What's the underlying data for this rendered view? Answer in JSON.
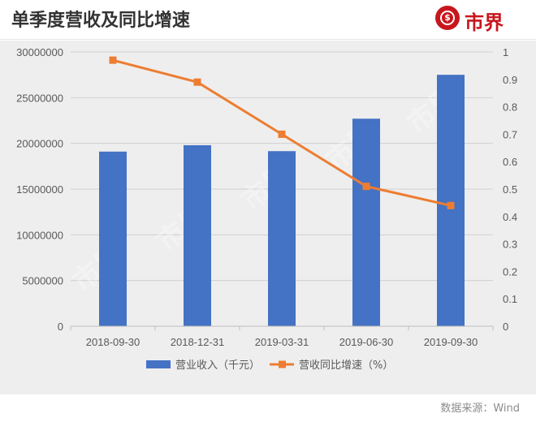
{
  "header": {
    "title": "单季度营收及同比增速",
    "logo_text": "市界"
  },
  "source_note": "数据来源：Wind",
  "watermark_text": "市界",
  "colors": {
    "bar": "#4472c4",
    "line": "#ed7d31",
    "brand": "#c8161d"
  },
  "chart_data": {
    "type": "bar",
    "categories": [
      "2018-09-30",
      "2018-12-31",
      "2019-03-31",
      "2019-06-30",
      "2019-09-30"
    ],
    "series": [
      {
        "name": "营业收入（千元）",
        "type": "bar",
        "axis": "left",
        "values": [
          19100000,
          19800000,
          19150000,
          22700000,
          27500000
        ]
      },
      {
        "name": "营收同比增速（%）",
        "type": "line",
        "axis": "right",
        "values": [
          0.97,
          0.89,
          0.7,
          0.51,
          0.44
        ]
      }
    ],
    "ylim": [
      0,
      30000000
    ],
    "yticks": [
      "0",
      "5000000",
      "10000000",
      "15000000",
      "20000000",
      "25000000",
      "30000000"
    ],
    "y2lim": [
      0,
      1
    ],
    "y2ticks": [
      "0",
      "0.1",
      "0.2",
      "0.3",
      "0.4",
      "0.5",
      "0.6",
      "0.7",
      "0.8",
      "0.9",
      "1"
    ],
    "grid": true,
    "legend_position": "bottom"
  }
}
